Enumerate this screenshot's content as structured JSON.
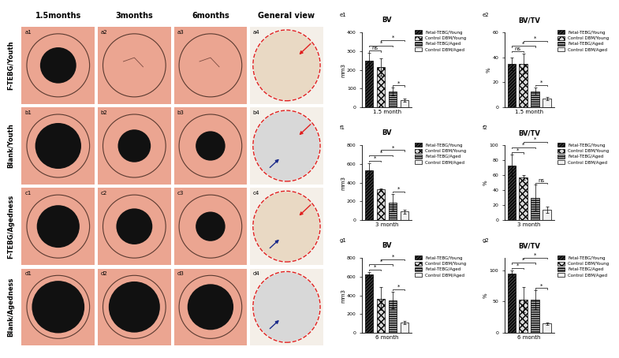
{
  "image_grid": {
    "columns": [
      "1.5months",
      "3months",
      "6months",
      "General view"
    ],
    "rows": [
      "F-TEBG/Youth",
      "Blank/Youth",
      "F-TEBG/Agedness",
      "Blank/Agedness"
    ],
    "panels": [
      [
        "a1",
        "a2",
        "a3",
        "a4"
      ],
      [
        "b1",
        "b2",
        "b3",
        "b4"
      ],
      [
        "c1",
        "c2",
        "c3",
        "c4"
      ],
      [
        "d1",
        "d2",
        "d3",
        "d4"
      ]
    ]
  },
  "chart_data": [
    {
      "type": "bar",
      "panel_label": "e1",
      "title": "BV",
      "xlabel": "1.5 month",
      "ylabel": "mm3",
      "categories": [
        "Fetal-TEBG/Young",
        "Control DBM/Young",
        "Fetal-TEBG/Aged",
        "Control DBM/Aged"
      ],
      "values": [
        250,
        215,
        85,
        40
      ],
      "errors": [
        40,
        45,
        20,
        8
      ],
      "colors": [
        "#3a3a3a",
        "#d9d9d9",
        "#bfbfbf",
        "#f2f2f2"
      ],
      "ylim": [
        0,
        400
      ],
      "yticks": [
        0,
        100,
        200,
        300,
        400
      ],
      "tick_labels": "y",
      "legend": "upper left",
      "annotations": [
        {
          "from": "Fetal-TEBG/Young",
          "to": "Control DBM/Young",
          "label": "ns"
        },
        {
          "from": "Fetal-TEBG/Young",
          "to": "Fetal-TEBG/Aged",
          "label": "*"
        },
        {
          "from": "Control DBM/Young",
          "to": "Control DBM/Aged",
          "label": "*"
        },
        {
          "from": "Fetal-TEBG/Aged",
          "to": "Control DBM/Aged",
          "label": "*"
        }
      ]
    },
    {
      "type": "bar",
      "panel_label": "e2",
      "title": "BV/TV",
      "xlabel": "1.5 month",
      "ylabel": "%",
      "categories": [
        "Fetal-TEBG/Young",
        "Control DBM/Young",
        "Fetal-TEBG/Aged",
        "Control DBM/Aged"
      ],
      "values": [
        35,
        35,
        13,
        7
      ],
      "errors": [
        5,
        8,
        3,
        1
      ],
      "colors": [
        "#3a3a3a",
        "#d9d9d9",
        "#bfbfbf",
        "#f2f2f2"
      ],
      "ylim": [
        0,
        60
      ],
      "yticks": [
        0,
        20,
        40,
        60
      ],
      "tick_labels": "y",
      "legend": "upper left",
      "annotations": [
        {
          "from": "Fetal-TEBG/Young",
          "to": "Control DBM/Young",
          "label": "ns"
        },
        {
          "from": "Fetal-TEBG/Young",
          "to": "Fetal-TEBG/Aged",
          "label": "*"
        },
        {
          "from": "Control DBM/Young",
          "to": "Control DBM/Aged",
          "label": "*"
        },
        {
          "from": "Fetal-TEBG/Aged",
          "to": "Control DBM/Aged",
          "label": "*"
        }
      ]
    },
    {
      "type": "bar",
      "panel_label": "f1",
      "title": "BV",
      "xlabel": "3 month",
      "ylabel": "mm3",
      "categories": [
        "Fetal-TEBG/Young",
        "Control DBM/Young",
        "Fetal-TEBG/Aged",
        "Control DBM/Aged"
      ],
      "values": [
        530,
        325,
        190,
        90
      ],
      "errors": [
        80,
        10,
        90,
        25
      ],
      "colors": [
        "#3a3a3a",
        "#d9d9d9",
        "#bfbfbf",
        "#f2f2f2"
      ],
      "ylim": [
        0,
        800
      ],
      "yticks": [
        0,
        200,
        400,
        600,
        800
      ],
      "tick_labels": "y",
      "legend": "upper left",
      "annotations": [
        {
          "from": "Fetal-TEBG/Young",
          "to": "Control DBM/Young",
          "label": "*"
        },
        {
          "from": "Fetal-TEBG/Young",
          "to": "Fetal-TEBG/Aged",
          "label": "*"
        },
        {
          "from": "Control DBM/Young",
          "to": "Control DBM/Aged",
          "label": "*"
        },
        {
          "from": "Fetal-TEBG/Aged",
          "to": "Control DBM/Aged",
          "label": "*"
        }
      ]
    },
    {
      "type": "bar",
      "panel_label": "f2",
      "title": "BV/TV",
      "xlabel": "3 month",
      "ylabel": "%",
      "categories": [
        "Fetal-TEBG/Young",
        "Control DBM/Young",
        "Fetal-TEBG/Aged",
        "Control DBM/Aged"
      ],
      "values": [
        73,
        57,
        30,
        14
      ],
      "errors": [
        14,
        3,
        17,
        4
      ],
      "colors": [
        "#3a3a3a",
        "#d9d9d9",
        "#bfbfbf",
        "#f2f2f2"
      ],
      "ylim": [
        0,
        100
      ],
      "yticks": [
        0,
        20,
        40,
        60,
        80,
        100
      ],
      "tick_labels": "y",
      "legend": "upper left",
      "annotations": [
        {
          "from": "Fetal-TEBG/Young",
          "to": "Control DBM/Young",
          "label": "*"
        },
        {
          "from": "Fetal-TEBG/Young",
          "to": "Fetal-TEBG/Aged",
          "label": "*"
        },
        {
          "from": "Control DBM/Young",
          "to": "Control DBM/Aged",
          "label": "*"
        },
        {
          "from": "Fetal-TEBG/Aged",
          "to": "Control DBM/Aged",
          "label": "ns"
        }
      ]
    },
    {
      "type": "bar",
      "panel_label": "g1",
      "title": "BV",
      "xlabel": "6 month",
      "ylabel": "mm3",
      "categories": [
        "Fetal-TEBG/Young",
        "Control DBM/Young",
        "Fetal-TEBG/Aged",
        "Control DBM/Aged"
      ],
      "values": [
        620,
        365,
        350,
        110
      ],
      "errors": [
        30,
        120,
        90,
        20
      ],
      "colors": [
        "#3a3a3a",
        "#d9d9d9",
        "#bfbfbf",
        "#f2f2f2"
      ],
      "ylim": [
        0,
        800
      ],
      "yticks": [
        0,
        200,
        400,
        600,
        800
      ],
      "tick_labels": "y",
      "legend": "upper left",
      "annotations": [
        {
          "from": "Fetal-TEBG/Young",
          "to": "Control DBM/Young",
          "label": "*"
        },
        {
          "from": "Fetal-TEBG/Young",
          "to": "Fetal-TEBG/Aged",
          "label": "*"
        },
        {
          "from": "Control DBM/Young",
          "to": "Control DBM/Aged",
          "label": "*"
        },
        {
          "from": "Fetal-TEBG/Aged",
          "to": "Control DBM/Aged",
          "label": "*"
        }
      ]
    },
    {
      "type": "bar",
      "panel_label": "g2",
      "title": "BV/TV",
      "xlabel": "6 month",
      "ylabel": "%",
      "categories": [
        "Fetal-TEBG/Young",
        "Control DBM/Young",
        "Fetal-TEBG/Aged",
        "Control DBM/Aged"
      ],
      "values": [
        95,
        53,
        53,
        15
      ],
      "errors": [
        5,
        20,
        15,
        2
      ],
      "colors": [
        "#3a3a3a",
        "#d9d9d9",
        "#bfbfbf",
        "#f2f2f2"
      ],
      "ylim": [
        0,
        120
      ],
      "yticks": [
        0,
        50,
        100
      ],
      "tick_labels": "y",
      "legend": "upper left",
      "annotations": [
        {
          "from": "Fetal-TEBG/Young",
          "to": "Control DBM/Young",
          "label": "*"
        },
        {
          "from": "Fetal-TEBG/Young",
          "to": "Fetal-TEBG/Aged",
          "label": "*"
        },
        {
          "from": "Control DBM/Young",
          "to": "Control DBM/Aged",
          "label": "*"
        },
        {
          "from": "Fetal-TEBG/Aged",
          "to": "Control DBM/Aged",
          "label": "*"
        }
      ]
    }
  ]
}
